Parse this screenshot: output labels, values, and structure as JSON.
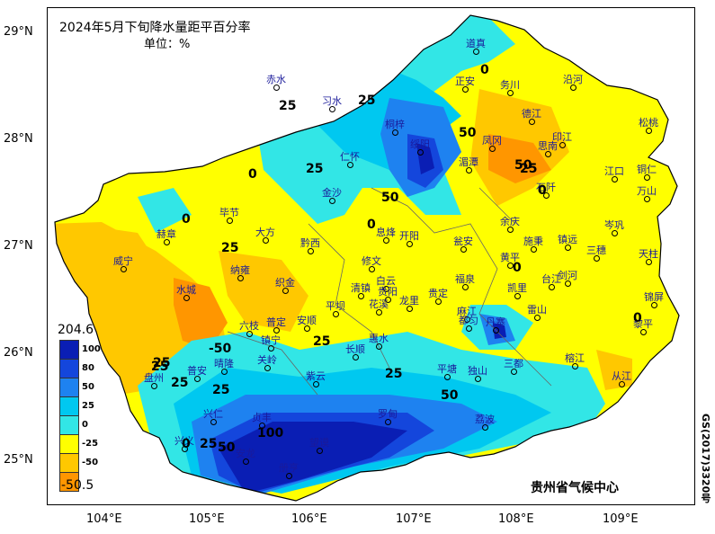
{
  "title": "2024年5月下旬降水量距平百分率",
  "unit": "单位：%",
  "source": "贵州省气候中心",
  "approval_number": "GS(2017)3320号",
  "lat_labels": [
    "29°N",
    "28°N",
    "27°N",
    "26°N",
    "25°N"
  ],
  "lon_labels": [
    "104°E",
    "105°E",
    "106°E",
    "107°E",
    "108°E",
    "109°E"
  ],
  "legend": {
    "max": "204.6",
    "min": "-50.5",
    "items": [
      {
        "label": "100",
        "color": "#0a1eb4"
      },
      {
        "label": "80",
        "color": "#1446dc"
      },
      {
        "label": "50",
        "color": "#1e82f0"
      },
      {
        "label": "25",
        "color": "#00c8f0"
      },
      {
        "label": "0",
        "color": "#32e6e6"
      },
      {
        "label": "-25",
        "color": "#ffff00"
      },
      {
        "label": "-50",
        "color": "#ffc800"
      }
    ],
    "bottom_color": "#ff9600"
  },
  "cities": [
    {
      "name": "道真"
    },
    {
      "name": "赤水"
    },
    {
      "name": "习水"
    },
    {
      "name": "正安"
    },
    {
      "name": "务川"
    },
    {
      "name": "沿河"
    },
    {
      "name": "德江"
    },
    {
      "name": "桐梓"
    },
    {
      "name": "印江"
    },
    {
      "name": "松桃"
    },
    {
      "name": "仁怀"
    },
    {
      "name": "绥阳"
    },
    {
      "name": "湄潭"
    },
    {
      "name": "凤冈"
    },
    {
      "name": "思南"
    },
    {
      "name": "江口"
    },
    {
      "name": "铜仁"
    },
    {
      "name": "金沙"
    },
    {
      "name": "石阡"
    },
    {
      "name": "万山"
    },
    {
      "name": "毕节"
    },
    {
      "name": "余庆"
    },
    {
      "name": "赫章"
    },
    {
      "name": "大方"
    },
    {
      "name": "黔西"
    },
    {
      "name": "息烽"
    },
    {
      "name": "开阳"
    },
    {
      "name": "瓮安"
    },
    {
      "name": "施秉"
    },
    {
      "name": "镇远"
    },
    {
      "name": "岑巩"
    },
    {
      "name": "三穗"
    },
    {
      "name": "威宁"
    },
    {
      "name": "纳雍"
    },
    {
      "name": "修文"
    },
    {
      "name": "黄平"
    },
    {
      "name": "天柱"
    },
    {
      "name": "织金"
    },
    {
      "name": "清镇"
    },
    {
      "name": "白云"
    },
    {
      "name": "贵阳"
    },
    {
      "name": "贵定"
    },
    {
      "name": "福泉"
    },
    {
      "name": "凯里"
    },
    {
      "name": "台江"
    },
    {
      "name": "剑河"
    },
    {
      "name": "锦屏"
    },
    {
      "name": "水城"
    },
    {
      "name": "平坝"
    },
    {
      "name": "花溪"
    },
    {
      "name": "龙里"
    },
    {
      "name": "麻江"
    },
    {
      "name": "雷山"
    },
    {
      "name": "黎平"
    },
    {
      "name": "六枝"
    },
    {
      "name": "普定"
    },
    {
      "name": "安顺"
    },
    {
      "name": "长顺"
    },
    {
      "name": "惠水"
    },
    {
      "name": "都匀"
    },
    {
      "name": "丹寨"
    },
    {
      "name": "榕江"
    },
    {
      "name": "镇宁"
    },
    {
      "name": "紫云"
    },
    {
      "name": "平塘"
    },
    {
      "name": "独山"
    },
    {
      "name": "三都"
    },
    {
      "name": "从江"
    },
    {
      "name": "盘州"
    },
    {
      "name": "普安"
    },
    {
      "name": "晴隆"
    },
    {
      "name": "关岭"
    },
    {
      "name": "兴仁"
    },
    {
      "name": "贞丰"
    },
    {
      "name": "望谟"
    },
    {
      "name": "罗甸"
    },
    {
      "name": "荔波"
    },
    {
      "name": "兴义"
    },
    {
      "name": "安龙"
    },
    {
      "name": "册亨"
    }
  ],
  "contour_labels": [
    "0",
    "25",
    "0",
    "25",
    "50",
    "25",
    "0",
    "50",
    "0",
    "25",
    "50",
    "25",
    "0",
    "25",
    "0",
    "-50",
    "25",
    "25",
    "50",
    "25",
    "100",
    "50",
    "25",
    "0",
    "25",
    "25",
    "0"
  ]
}
